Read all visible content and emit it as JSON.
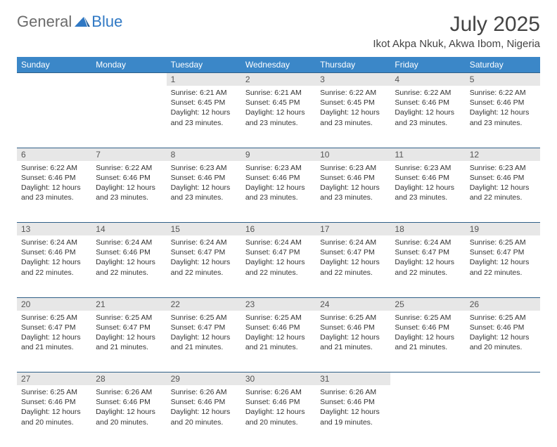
{
  "logo": {
    "word1": "General",
    "word2": "Blue"
  },
  "title": "July 2025",
  "location": "Ikot Akpa Nkuk, Akwa Ibom, Nigeria",
  "colors": {
    "header_bg": "#3b87c8",
    "header_text": "#ffffff",
    "daynum_bg": "#e7e7e7",
    "rule": "#2f5f87",
    "logo_gray": "#6b6b6b",
    "logo_blue": "#2f78c4",
    "page_bg": "#ffffff"
  },
  "weekdays": [
    "Sunday",
    "Monday",
    "Tuesday",
    "Wednesday",
    "Thursday",
    "Friday",
    "Saturday"
  ],
  "weeks": [
    [
      null,
      null,
      {
        "n": "1",
        "sr": "6:21 AM",
        "ss": "6:45 PM",
        "dl": "12 hours and 23 minutes."
      },
      {
        "n": "2",
        "sr": "6:21 AM",
        "ss": "6:45 PM",
        "dl": "12 hours and 23 minutes."
      },
      {
        "n": "3",
        "sr": "6:22 AM",
        "ss": "6:45 PM",
        "dl": "12 hours and 23 minutes."
      },
      {
        "n": "4",
        "sr": "6:22 AM",
        "ss": "6:46 PM",
        "dl": "12 hours and 23 minutes."
      },
      {
        "n": "5",
        "sr": "6:22 AM",
        "ss": "6:46 PM",
        "dl": "12 hours and 23 minutes."
      }
    ],
    [
      {
        "n": "6",
        "sr": "6:22 AM",
        "ss": "6:46 PM",
        "dl": "12 hours and 23 minutes."
      },
      {
        "n": "7",
        "sr": "6:22 AM",
        "ss": "6:46 PM",
        "dl": "12 hours and 23 minutes."
      },
      {
        "n": "8",
        "sr": "6:23 AM",
        "ss": "6:46 PM",
        "dl": "12 hours and 23 minutes."
      },
      {
        "n": "9",
        "sr": "6:23 AM",
        "ss": "6:46 PM",
        "dl": "12 hours and 23 minutes."
      },
      {
        "n": "10",
        "sr": "6:23 AM",
        "ss": "6:46 PM",
        "dl": "12 hours and 23 minutes."
      },
      {
        "n": "11",
        "sr": "6:23 AM",
        "ss": "6:46 PM",
        "dl": "12 hours and 23 minutes."
      },
      {
        "n": "12",
        "sr": "6:23 AM",
        "ss": "6:46 PM",
        "dl": "12 hours and 22 minutes."
      }
    ],
    [
      {
        "n": "13",
        "sr": "6:24 AM",
        "ss": "6:46 PM",
        "dl": "12 hours and 22 minutes."
      },
      {
        "n": "14",
        "sr": "6:24 AM",
        "ss": "6:46 PM",
        "dl": "12 hours and 22 minutes."
      },
      {
        "n": "15",
        "sr": "6:24 AM",
        "ss": "6:47 PM",
        "dl": "12 hours and 22 minutes."
      },
      {
        "n": "16",
        "sr": "6:24 AM",
        "ss": "6:47 PM",
        "dl": "12 hours and 22 minutes."
      },
      {
        "n": "17",
        "sr": "6:24 AM",
        "ss": "6:47 PM",
        "dl": "12 hours and 22 minutes."
      },
      {
        "n": "18",
        "sr": "6:24 AM",
        "ss": "6:47 PM",
        "dl": "12 hours and 22 minutes."
      },
      {
        "n": "19",
        "sr": "6:25 AM",
        "ss": "6:47 PM",
        "dl": "12 hours and 22 minutes."
      }
    ],
    [
      {
        "n": "20",
        "sr": "6:25 AM",
        "ss": "6:47 PM",
        "dl": "12 hours and 21 minutes."
      },
      {
        "n": "21",
        "sr": "6:25 AM",
        "ss": "6:47 PM",
        "dl": "12 hours and 21 minutes."
      },
      {
        "n": "22",
        "sr": "6:25 AM",
        "ss": "6:47 PM",
        "dl": "12 hours and 21 minutes."
      },
      {
        "n": "23",
        "sr": "6:25 AM",
        "ss": "6:46 PM",
        "dl": "12 hours and 21 minutes."
      },
      {
        "n": "24",
        "sr": "6:25 AM",
        "ss": "6:46 PM",
        "dl": "12 hours and 21 minutes."
      },
      {
        "n": "25",
        "sr": "6:25 AM",
        "ss": "6:46 PM",
        "dl": "12 hours and 21 minutes."
      },
      {
        "n": "26",
        "sr": "6:25 AM",
        "ss": "6:46 PM",
        "dl": "12 hours and 20 minutes."
      }
    ],
    [
      {
        "n": "27",
        "sr": "6:25 AM",
        "ss": "6:46 PM",
        "dl": "12 hours and 20 minutes."
      },
      {
        "n": "28",
        "sr": "6:26 AM",
        "ss": "6:46 PM",
        "dl": "12 hours and 20 minutes."
      },
      {
        "n": "29",
        "sr": "6:26 AM",
        "ss": "6:46 PM",
        "dl": "12 hours and 20 minutes."
      },
      {
        "n": "30",
        "sr": "6:26 AM",
        "ss": "6:46 PM",
        "dl": "12 hours and 20 minutes."
      },
      {
        "n": "31",
        "sr": "6:26 AM",
        "ss": "6:46 PM",
        "dl": "12 hours and 19 minutes."
      },
      null,
      null
    ]
  ],
  "labels": {
    "sunrise": "Sunrise:",
    "sunset": "Sunset:",
    "daylight": "Daylight:"
  }
}
